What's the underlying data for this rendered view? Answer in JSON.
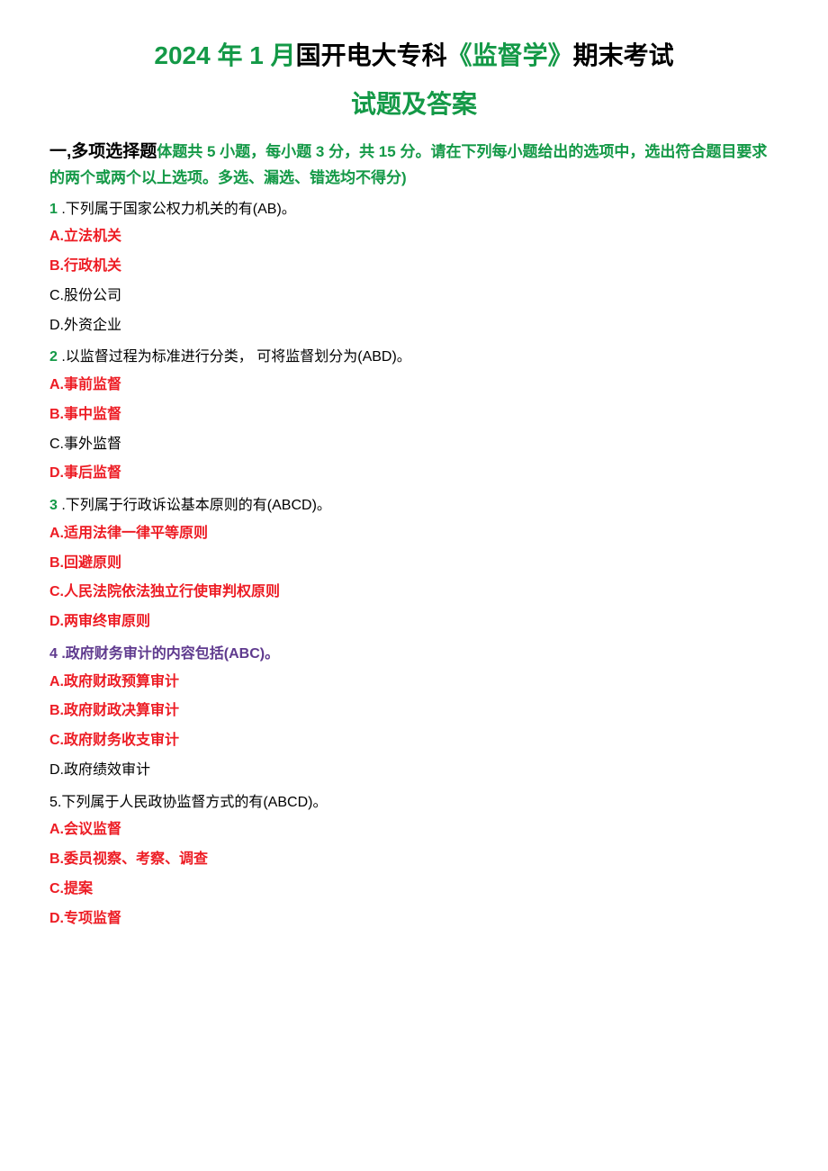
{
  "colors": {
    "green": "#149947",
    "black": "#000000",
    "red": "#ed1c24",
    "purple": "#5f3a8e",
    "qnum_green": "#149947"
  },
  "typography": {
    "title_fontsize": "28px",
    "section_heading_fontsize": "17px",
    "body_fontsize": "16px"
  },
  "title": {
    "line1_parts": [
      {
        "text": "2024 年 1 月",
        "color": "#149947"
      },
      {
        "text": "国开电大专科",
        "color": "#000000"
      },
      {
        "text": "《监督学》",
        "color": "#149947"
      },
      {
        "text": "期末考试",
        "color": "#000000"
      }
    ],
    "line2": "试题及答案",
    "line2_color": "#149947"
  },
  "section": {
    "prefix": "一,多项选择题",
    "prefix_color": "#000000",
    "instruction": "体题共 5 小题，每小题 3 分，共 15 分。请在下列每小题给出的选项中，选出符合题目要求的两个或两个以上选项。多选、漏选、错选均不得分)",
    "instruction_color": "#149947"
  },
  "questions": [
    {
      "num": "1",
      "num_color": "#149947",
      "text": " .下列属于国家公权力机关的有(AB)。",
      "text_color": "#000000",
      "options": [
        {
          "label": "A.立法机关",
          "color": "#ed1c24",
          "bold": true
        },
        {
          "label": "B.行政机关",
          "color": "#ed1c24",
          "bold": true
        },
        {
          "label": "C.股份公司",
          "color": "#000000",
          "bold": false
        },
        {
          "label": "D.外资企业",
          "color": "#000000",
          "bold": false
        }
      ]
    },
    {
      "num": "2",
      "num_color": "#149947",
      "text": " .以监督过程为标准进行分类，  可将监督划分为(ABD)。",
      "text_color": "#000000",
      "options": [
        {
          "label": "A.事前监督",
          "color": "#ed1c24",
          "bold": true
        },
        {
          "label": "B.事中监督",
          "color": "#ed1c24",
          "bold": true
        },
        {
          "label": "C.事外监督",
          "color": "#000000",
          "bold": false
        },
        {
          "label": "D.事后监督",
          "color": "#ed1c24",
          "bold": true
        }
      ]
    },
    {
      "num": "3",
      "num_color": "#149947",
      "text": " .下列属于行政诉讼基本原则的有(ABCD)。",
      "text_color": "#000000",
      "options": [
        {
          "label": "A.适用法律一律平等原则",
          "color": "#ed1c24",
          "bold": true
        },
        {
          "label": "B.回避原则",
          "color": "#ed1c24",
          "bold": true
        },
        {
          "label": "C.人民法院依法独立行使审判权原则",
          "color": "#ed1c24",
          "bold": true
        },
        {
          "label": "D.两审终审原则",
          "color": "#ed1c24",
          "bold": true
        }
      ]
    },
    {
      "num": "4",
      "num_color": "#5f3a8e",
      "text": "  .政府财务审计的内容包括(ABC)。",
      "text_color": "#5f3a8e",
      "options": [
        {
          "label": "A.政府财政预算审计",
          "color": "#ed1c24",
          "bold": true
        },
        {
          "label": "B.政府财政决算审计",
          "color": "#ed1c24",
          "bold": true
        },
        {
          "label": "C.政府财务收支审计",
          "color": "#ed1c24",
          "bold": true
        },
        {
          "label": "D.政府绩效审计",
          "color": "#000000",
          "bold": false
        }
      ]
    },
    {
      "num": "5.",
      "num_color": "#000000",
      "text": "下列属于人民政协监督方式的有(ABCD)。",
      "text_color": "#000000",
      "options": [
        {
          "label": "A.会议监督",
          "color": "#ed1c24",
          "bold": true
        },
        {
          "label": "B.委员视察、考察、调查",
          "color": "#ed1c24",
          "bold": true
        },
        {
          "label": "C.提案",
          "color": "#ed1c24",
          "bold": true
        },
        {
          "label": "D.专项监督",
          "color": "#ed1c24",
          "bold": true
        }
      ]
    }
  ]
}
